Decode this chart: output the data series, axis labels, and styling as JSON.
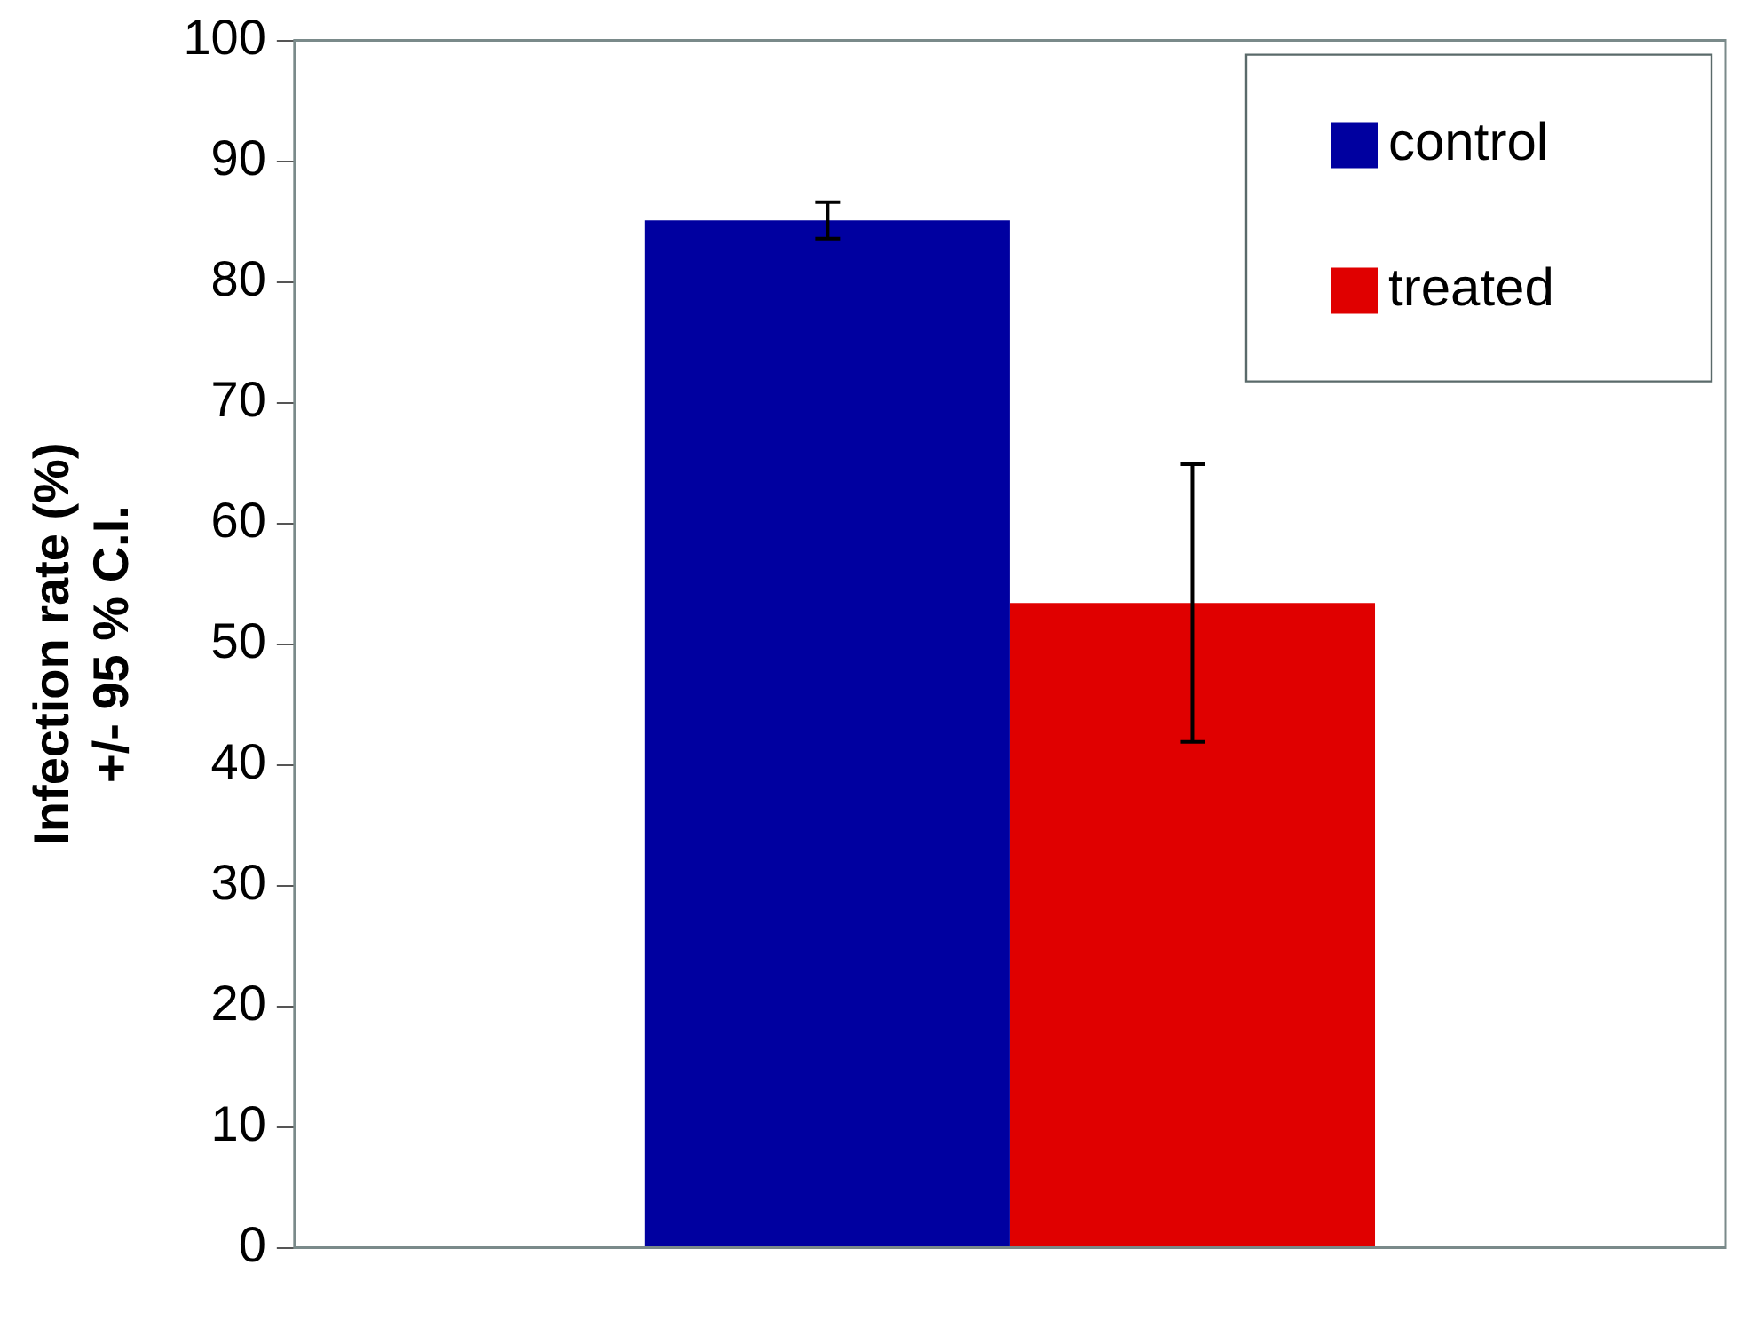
{
  "chart_data": {
    "type": "bar",
    "ylabel": "Infection rate (%)\n+/- 95 % C.I.",
    "categories": [
      null
    ],
    "series": [
      {
        "name": "control",
        "color": "#0000a0",
        "values": [
          85.1
        ],
        "errors": [
          1.5
        ]
      },
      {
        "name": "treated",
        "color": "#e00000",
        "values": [
          53.4
        ],
        "errors": [
          11.5
        ]
      }
    ],
    "ylim": [
      0,
      100
    ],
    "yticks": [
      0,
      10,
      20,
      30,
      40,
      50,
      60,
      70,
      80,
      90,
      100
    ],
    "grid": false,
    "legend": "top right"
  }
}
